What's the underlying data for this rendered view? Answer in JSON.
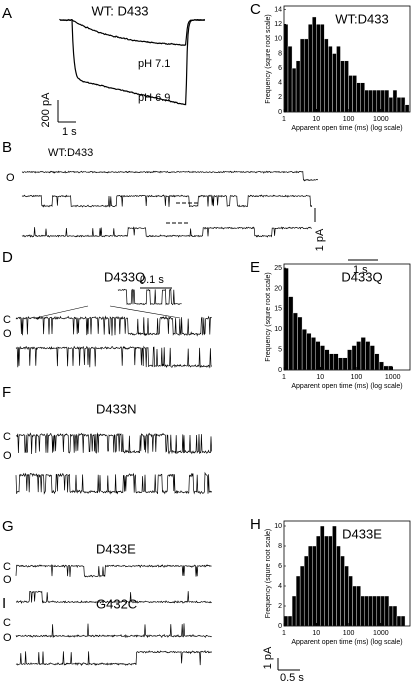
{
  "figure": {
    "A": {
      "label": "A",
      "title": "WT: D433",
      "trace_labels": [
        "pH 7.1",
        "pH 6.9"
      ],
      "scale_y": "200 pA",
      "scale_x": "1 s"
    },
    "B": {
      "label": "B",
      "title": "WT:D433",
      "state": "O",
      "scale_y": "1 pA",
      "scale_x": "1 s"
    },
    "D": {
      "label": "D",
      "title": "D433Q",
      "inset_scale": "0.1 s",
      "states": [
        "C",
        "O"
      ]
    },
    "F": {
      "label": "F",
      "title": "D433N",
      "states": [
        "C",
        "O"
      ]
    },
    "G": {
      "label": "G",
      "title": "D433E",
      "states": [
        "C",
        "O"
      ]
    },
    "I": {
      "label": "I",
      "title": "G432C",
      "states": [
        "C",
        "O"
      ],
      "scale_y": "1 pA",
      "scale_x": "0.5 s"
    }
  },
  "chart_data": [
    {
      "type": "histogram",
      "panel_label": "C",
      "title": "WT:D433",
      "x_label": "Apparent open time (ms)  (log scale)",
      "y_label": "Frequency (squre root scale)",
      "log_x": true,
      "color": "#000000",
      "bins": [
        1,
        1.33,
        1.78,
        2.37,
        3.16,
        4.22,
        5.62,
        7.5,
        10,
        13.3,
        17.8,
        23.7,
        31.6,
        42.2,
        56.2,
        75,
        100,
        133,
        178,
        237,
        316,
        422,
        562,
        750,
        1000,
        1330,
        1780,
        2370,
        3160,
        4220,
        5620,
        7500
      ],
      "values": [
        12,
        9,
        6,
        7,
        10,
        10,
        12,
        13,
        12,
        12,
        10,
        9,
        8,
        9,
        7,
        7,
        5,
        5,
        4,
        4,
        3,
        3,
        3,
        3,
        3,
        3,
        2,
        3,
        2,
        2,
        1
      ],
      "xlim": [
        1,
        8000
      ],
      "xticks": [
        1,
        10,
        100,
        1000
      ],
      "ylim": [
        0,
        14.5
      ],
      "yticks": [
        0,
        2,
        4,
        6,
        8,
        10,
        12,
        14
      ]
    },
    {
      "type": "histogram",
      "panel_label": "E",
      "title": "D433Q",
      "x_label": "Apparent open time (ms)  (log scale)",
      "y_label": "Frequency (squre root scale)",
      "log_x": true,
      "color": "#000000",
      "bins": [
        1,
        1.33,
        1.78,
        2.37,
        3.16,
        4.22,
        5.62,
        7.5,
        10,
        13.3,
        17.8,
        23.7,
        31.6,
        42.2,
        56.2,
        75,
        100,
        133,
        178,
        237,
        316,
        422,
        562,
        750,
        1000,
        1330,
        1780,
        2370
      ],
      "values": [
        25,
        18,
        14,
        13,
        10,
        9,
        8,
        7,
        6,
        5,
        4,
        4,
        3,
        3,
        5,
        6,
        7,
        8,
        7,
        6,
        4,
        2,
        1,
        1,
        0,
        0,
        0
      ],
      "xlim": [
        1,
        3000
      ],
      "xticks": [
        1,
        10,
        100,
        1000
      ],
      "ylim": [
        0,
        26
      ],
      "yticks": [
        0,
        5,
        10,
        15,
        20,
        25
      ]
    },
    {
      "type": "histogram",
      "panel_label": "H",
      "title": "D433E",
      "x_label": "Apparent open time (ms)  (log scale)",
      "y_label": "Frequency (squre root scale)",
      "log_x": true,
      "color": "#000000",
      "bins": [
        1,
        1.33,
        1.78,
        2.37,
        3.16,
        4.22,
        5.62,
        7.5,
        10,
        13.3,
        17.8,
        23.7,
        31.6,
        42.2,
        56.2,
        75,
        100,
        133,
        178,
        237,
        316,
        422,
        562,
        750,
        1000,
        1330,
        1780,
        2370,
        3160,
        4220,
        5620,
        7500
      ],
      "values": [
        1,
        1,
        3,
        5,
        6,
        7,
        8,
        8,
        9,
        10,
        9,
        9,
        10,
        8,
        7,
        6,
        5,
        4,
        4,
        3,
        3,
        3,
        3,
        3,
        3,
        3,
        2,
        2,
        1,
        1,
        0
      ],
      "xlim": [
        1,
        8000
      ],
      "xticks": [
        1,
        10,
        100,
        1000
      ],
      "ylim": [
        0,
        10.5
      ],
      "yticks": [
        0,
        2,
        4,
        6,
        8,
        10
      ]
    }
  ]
}
